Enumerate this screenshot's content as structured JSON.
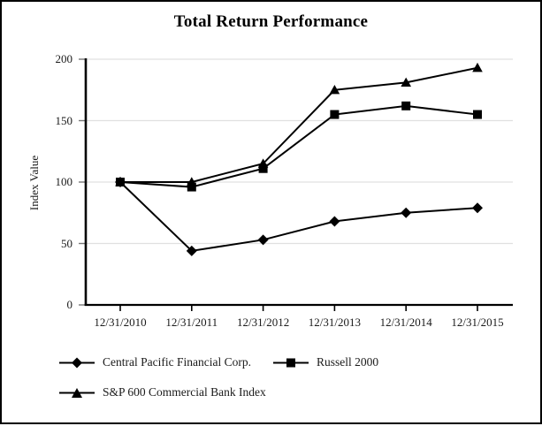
{
  "title": "Total Return Performance",
  "y_axis_title": "Index Value",
  "colors": {
    "series_line": "#000000",
    "axis": "#000000",
    "gridline": "#e0e0e0",
    "tick": "#777777",
    "background": "#ffffff",
    "frame_border": "#000000",
    "text": "#1a1a1a"
  },
  "chart_data": {
    "type": "line",
    "title": "Total Return Performance",
    "ylabel": "Index Value",
    "xlabel": "",
    "x": [
      "12/31/2010",
      "12/31/2011",
      "12/31/2012",
      "12/31/2013",
      "12/31/2014",
      "12/31/2015"
    ],
    "series": [
      {
        "name": "Central Pacific Financial Corp.",
        "marker": "diamond",
        "values": [
          100,
          44,
          53,
          68,
          75,
          79
        ]
      },
      {
        "name": "Russell 2000",
        "marker": "square",
        "values": [
          100,
          96,
          111,
          155,
          162,
          155
        ]
      },
      {
        "name": "S&P 600 Commercial Bank Index",
        "marker": "triangle",
        "values": [
          100,
          100,
          115,
          175,
          181,
          193
        ]
      }
    ],
    "ylim": [
      0,
      200
    ],
    "yticks": [
      0,
      50,
      100,
      150,
      200
    ],
    "grid": true,
    "grid_axis": "y",
    "legend_position": "bottom-left"
  }
}
